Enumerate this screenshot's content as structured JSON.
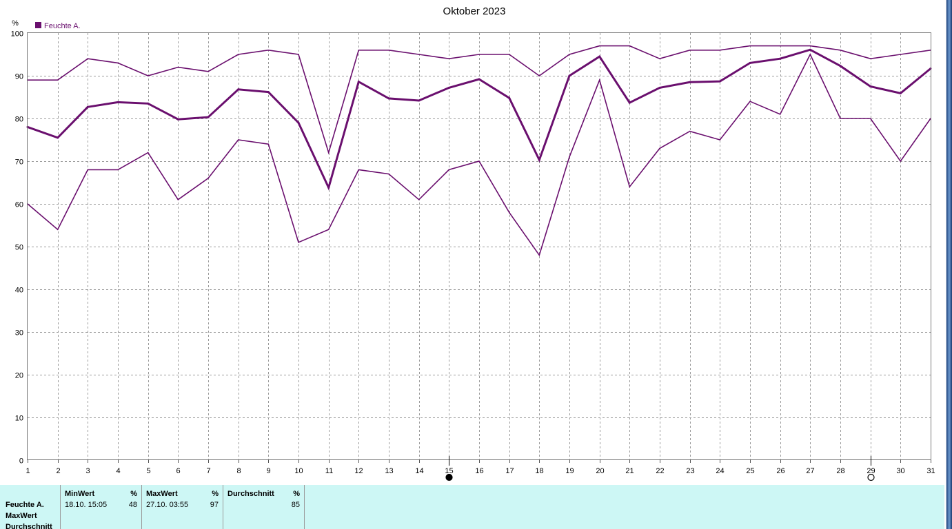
{
  "chart_data": {
    "type": "line",
    "title": "Oktober 2023",
    "ylabel": "%",
    "ylim": [
      0,
      100
    ],
    "yticks": [
      0,
      10,
      20,
      30,
      40,
      50,
      60,
      70,
      80,
      90,
      100
    ],
    "grid": true,
    "legend_placement": "top-left",
    "legend": [
      {
        "label": "Feuchte A.",
        "color": "#6a0f6e"
      }
    ],
    "x": [
      1,
      2,
      3,
      4,
      5,
      6,
      7,
      8,
      9,
      10,
      11,
      12,
      13,
      14,
      15,
      16,
      17,
      18,
      19,
      20,
      21,
      22,
      23,
      24,
      25,
      26,
      27,
      28,
      29,
      30,
      31
    ],
    "series": [
      {
        "role": "max",
        "width": 1.6,
        "values": [
          89,
          89,
          94,
          93,
          90,
          92,
          91,
          95,
          96,
          95,
          72,
          96,
          96,
          95,
          94,
          95,
          95,
          90,
          95,
          97,
          97,
          94,
          96,
          96,
          97,
          97,
          97,
          96,
          94,
          95,
          96
        ]
      },
      {
        "role": "mean",
        "width": 3,
        "values": [
          78,
          75.5,
          82.7,
          83.8,
          83.5,
          79.8,
          80.3,
          86.8,
          86.2,
          79,
          63.8,
          88.6,
          84.7,
          84.2,
          87.2,
          89.2,
          84.8,
          70.3,
          90,
          94.5,
          83.7,
          87.2,
          88.5,
          88.7,
          93,
          94,
          96.1,
          92.3,
          87.5,
          85.9,
          91.7
        ]
      },
      {
        "role": "min",
        "width": 1.6,
        "values": [
          60,
          54,
          68,
          68,
          72,
          61,
          66,
          75,
          74,
          51,
          54,
          68,
          67,
          61,
          68,
          70,
          58,
          48,
          71,
          89,
          64,
          73,
          77,
          75,
          84,
          81,
          95,
          80,
          80,
          70,
          80
        ]
      }
    ],
    "markers": [
      {
        "x": 15,
        "symbol": "filled-circle"
      },
      {
        "x": 29,
        "symbol": "open-circle"
      }
    ],
    "line_color": "#6a0f6e"
  },
  "stats": {
    "rows": [
      "Feuchte A.",
      "MaxWert",
      "Durchschnitt"
    ],
    "columns": [
      {
        "title": "MinWert",
        "unit": "%",
        "time": "18.10.  15:05",
        "value": "48"
      },
      {
        "title": "MaxWert",
        "unit": "%",
        "time": "27.10.  03:55",
        "value": "97"
      },
      {
        "title": "Durchschnitt",
        "unit": "%",
        "time": "",
        "value": "85"
      }
    ],
    "background": "#cdf7f5"
  }
}
